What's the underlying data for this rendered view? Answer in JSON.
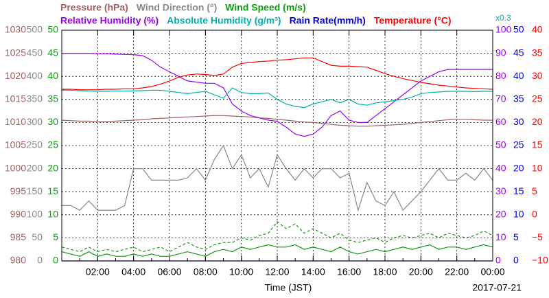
{
  "chart_data": {
    "type": "line",
    "x": [
      0,
      0.5,
      1,
      1.5,
      2,
      2.5,
      3,
      3.5,
      4,
      4.5,
      5,
      5.5,
      6,
      6.5,
      7,
      7.5,
      8,
      8.5,
      9,
      9.5,
      10,
      10.5,
      11,
      11.5,
      12,
      12.5,
      13,
      13.5,
      14,
      14.5,
      15,
      15.5,
      16,
      16.5,
      17,
      17.5,
      18,
      18.5,
      19,
      19.5,
      20,
      20.5,
      21,
      21.5,
      22,
      22.5,
      23,
      23.5,
      24
    ],
    "xlim": [
      0,
      24
    ],
    "xticks": [
      {
        "value": 2,
        "label": "02:00"
      },
      {
        "value": 4,
        "label": "04:00"
      },
      {
        "value": 6,
        "label": "06:00"
      },
      {
        "value": 8,
        "label": "08:00"
      },
      {
        "value": 10,
        "label": "10:00"
      },
      {
        "value": 12,
        "label": "12:00"
      },
      {
        "value": 14,
        "label": "14:00"
      },
      {
        "value": 16,
        "label": "16:00"
      },
      {
        "value": 18,
        "label": "18:00"
      },
      {
        "value": 20,
        "label": "20:00"
      },
      {
        "value": 22,
        "label": "22:00"
      },
      {
        "value": 24,
        "label": "00:00"
      }
    ],
    "xlabel": "Time (JST)",
    "date": "2017-07-21",
    "annotation": "x0.3",
    "grid": true,
    "axes": [
      {
        "side": "left",
        "color": "#a06060",
        "ylim": [
          980,
          1030
        ],
        "yticks": [
          980,
          985,
          990,
          995,
          1000,
          1005,
          1010,
          1015,
          1020,
          1025,
          1030
        ],
        "series": [
          {
            "name": "Pressure (hPa)",
            "color": "#a06060",
            "values": [
              1010.5,
              1010.4,
              1010.3,
              1010.3,
              1010.2,
              1010.2,
              1010.3,
              1010.4,
              1010.5,
              1010.6,
              1010.8,
              1010.9,
              1011.0,
              1011.1,
              1011.2,
              1011.3,
              1011.4,
              1011.5,
              1011.5,
              1011.4,
              1011.3,
              1011.2,
              1011.0,
              1010.9,
              1010.7,
              1010.5,
              1010.3,
              1010.1,
              1010.0,
              1009.8,
              1009.6,
              1009.4,
              1009.3,
              1009.2,
              1009.2,
              1009.3,
              1009.4,
              1009.5,
              1009.6,
              1009.8,
              1010.0,
              1010.2,
              1010.4,
              1010.6,
              1010.7,
              1010.7,
              1010.6,
              1010.5,
              1010.5
            ]
          }
        ]
      },
      {
        "side": "left",
        "color": "#888888",
        "ylim": [
          0,
          500
        ],
        "yticks": [
          0,
          50,
          100,
          150,
          200,
          250,
          300,
          350,
          400,
          450,
          500
        ],
        "series": [
          {
            "name": "Wind Direction (°)",
            "color": "#888888",
            "values": [
              120,
              120,
              110,
              130,
              110,
              110,
              110,
              120,
              200,
              200,
              175,
              175,
              175,
              175,
              180,
              200,
              175,
              220,
              250,
              200,
              230,
              180,
              200,
              160,
              230,
              200,
              175,
              200,
              180,
              200,
              200,
              180,
              190,
              110,
              170,
              130,
              120,
              150,
              110,
              130,
              150,
              175,
              200,
              175,
              175,
              190,
              175,
              200,
              175
            ]
          }
        ]
      },
      {
        "side": "left",
        "color": "#119911",
        "ylim": [
          0,
          50
        ],
        "yticks": [
          0,
          5,
          10,
          15,
          20,
          25,
          30,
          35,
          40,
          45,
          50
        ],
        "series": [
          {
            "name": "Wind Speed (m/s)",
            "color": "#119911",
            "values": [
              2,
              1.5,
              1,
              2,
              1,
              1.5,
              1,
              1,
              1.5,
              1,
              1.5,
              1,
              1,
              1.5,
              2,
              1.5,
              1,
              2,
              2.5,
              2,
              3,
              2.5,
              3,
              3.5,
              3,
              3,
              3.5,
              2.5,
              3,
              2.5,
              2,
              3,
              2,
              1.5,
              2,
              2.5,
              2,
              2.5,
              3,
              2.5,
              3,
              3.5,
              2.5,
              3,
              3,
              2.5,
              3,
              3.5,
              3
            ]
          },
          {
            "color": "#119911",
            "dashed": true,
            "values": [
              3,
              2.5,
              2,
              3,
              2,
              2.5,
              2,
              2.5,
              3,
              2,
              2.5,
              3,
              2,
              3,
              4,
              3,
              2.5,
              3.5,
              4,
              4,
              5,
              4.5,
              5.5,
              6,
              8.5,
              7,
              8,
              6,
              7,
              6,
              5,
              6,
              4.5,
              4,
              4.5,
              5,
              4,
              5,
              5.5,
              5,
              5.5,
              6,
              5,
              6,
              5.5,
              5,
              5.5,
              6.5,
              5.5
            ]
          }
        ]
      },
      {
        "side": "right",
        "color": "#9a00ee",
        "ylim": [
          0,
          100
        ],
        "yticks": [
          0,
          10,
          20,
          30,
          40,
          50,
          60,
          70,
          80,
          90,
          100
        ],
        "series": [
          {
            "name": "Relative Humidity (%)",
            "color": "#9a00ee",
            "values": [
              89.9,
              90,
              90,
              90,
              89.8,
              89.8,
              89.6,
              89.5,
              89.4,
              89,
              87,
              84,
              82,
              80,
              78,
              77.5,
              77,
              77,
              75,
              68,
              65,
              63,
              62,
              61,
              60.5,
              58,
              55,
              54,
              55,
              58,
              63,
              65,
              61,
              60,
              60,
              63,
              66,
              69,
              72,
              75,
              78,
              80,
              82,
              83,
              83,
              83,
              83,
              83,
              83
            ]
          },
          {
            "name": "Absolute Humidity (g/m³)",
            "color": "#00b0b0",
            "values": [
              74,
              74,
              73.8,
              73.6,
              73.5,
              73.5,
              73.6,
              73.6,
              73.7,
              73.8,
              74,
              74,
              73.5,
              73,
              72.5,
              73,
              73.5,
              72,
              70.5,
              75,
              73,
              72.5,
              72.5,
              72.8,
              70,
              68,
              67,
              66.5,
              68,
              69,
              70,
              68.5,
              70,
              68,
              67.5,
              68.5,
              69,
              69.5,
              70,
              71,
              72.5,
              73,
              73.2,
              73.5,
              73.5,
              73.5,
              73.4,
              73.5,
              73.5
            ]
          }
        ]
      },
      {
        "side": "right",
        "color": "#0000dd",
        "ylim": [
          0,
          50
        ],
        "yticks": [
          0,
          5,
          10,
          15,
          20,
          25,
          30,
          35,
          40,
          45,
          50
        ],
        "series": [
          {
            "name": "Rain Rate(mm/h)",
            "color": "#0000dd",
            "values": [
              0,
              0,
              0,
              0,
              0,
              0,
              0,
              0,
              0,
              0,
              0,
              0,
              0,
              0,
              0,
              0,
              0,
              0,
              0,
              0,
              0,
              0,
              0,
              0,
              0,
              0,
              0,
              0,
              0,
              0,
              0,
              0,
              0,
              0,
              0,
              0,
              0,
              0,
              0,
              0,
              0,
              0,
              0,
              0,
              0,
              0,
              0,
              0,
              0
            ]
          }
        ]
      },
      {
        "side": "right",
        "color": "#ff0000",
        "ylim": [
          -10,
          40
        ],
        "yticks": [
          {
            "value": -10,
            "label": "−10"
          },
          {
            "value": -5,
            "label": "−5"
          },
          0,
          5,
          10,
          15,
          20,
          25,
          30,
          35,
          40
        ],
        "series": [
          {
            "name": "Temperature (°C)",
            "color": "#ff0000",
            "values": [
              27.2,
              27.2,
              27.1,
              27.1,
              27.1,
              27.2,
              27.2,
              27.3,
              27.3,
              27.5,
              27.8,
              28.3,
              29.0,
              29.8,
              30.3,
              30.5,
              30.4,
              30.2,
              30.5,
              32.0,
              32.8,
              33.0,
              33.2,
              33.3,
              33.5,
              33.6,
              33.8,
              34.0,
              34.0,
              33.2,
              32.4,
              32.2,
              32.2,
              32.1,
              32.0,
              31.3,
              30.6,
              30.0,
              29.5,
              29.1,
              28.7,
              28.4,
              28.1,
              27.9,
              27.7,
              27.5,
              27.4,
              27.3,
              27.2
            ]
          }
        ]
      }
    ]
  }
}
